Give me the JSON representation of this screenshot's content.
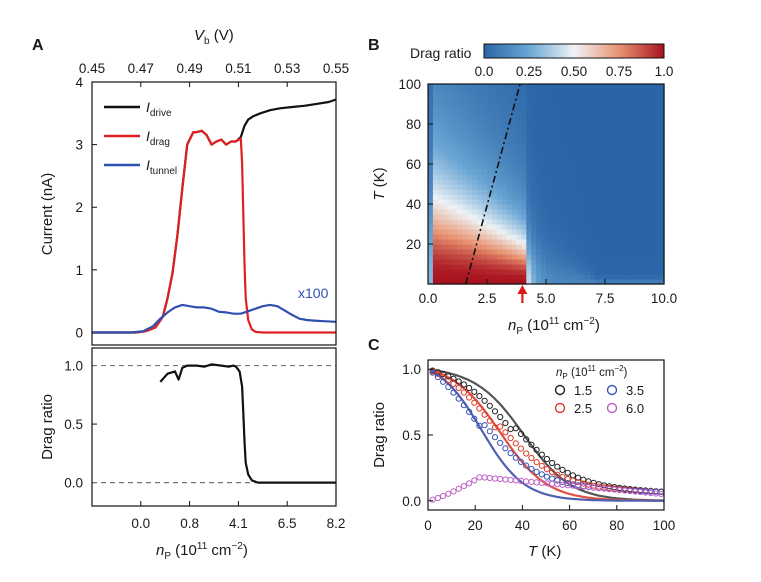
{
  "panels": {
    "a": "A",
    "b": "B",
    "c": "C"
  },
  "chart_data": [
    {
      "panel": "A",
      "type": "line",
      "top_axis": {
        "label_main": "V",
        "label_sub": "b",
        "label_unit": " (V)",
        "range": [
          0.45,
          0.55
        ],
        "ticks": [
          "0.45",
          "0.47",
          "0.49",
          "0.51",
          "0.53",
          "0.55"
        ]
      },
      "ylabel": "Current (nA)",
      "ylim": [
        -0.2,
        4.0
      ],
      "yticks": [
        "0",
        "1",
        "2",
        "3",
        "4"
      ],
      "annotation": "x100",
      "series": [
        {
          "name_main": "I",
          "name_sub": "drive",
          "color": "#111111",
          "x": [
            0.45,
            0.462,
            0.468,
            0.472,
            0.476,
            0.479,
            0.481,
            0.483,
            0.485,
            0.487,
            0.489,
            0.4915,
            0.493,
            0.495,
            0.497,
            0.499,
            0.501,
            0.503,
            0.505,
            0.507,
            0.509,
            0.511,
            0.5125,
            0.514,
            0.516,
            0.519,
            0.523,
            0.527,
            0.532,
            0.537,
            0.542,
            0.547,
            0.55
          ],
          "y": [
            0.0,
            0.0,
            0.0,
            0.02,
            0.08,
            0.25,
            0.55,
            0.95,
            1.55,
            2.3,
            3.0,
            3.2,
            3.2,
            3.22,
            3.15,
            3.0,
            3.05,
            3.08,
            3.0,
            3.05,
            3.05,
            3.12,
            3.3,
            3.4,
            3.45,
            3.5,
            3.55,
            3.58,
            3.6,
            3.62,
            3.65,
            3.68,
            3.72
          ]
        },
        {
          "name_main": "I",
          "name_sub": "drag",
          "color": "#e02020",
          "x": [
            0.45,
            0.462,
            0.468,
            0.472,
            0.476,
            0.479,
            0.481,
            0.483,
            0.485,
            0.487,
            0.489,
            0.4915,
            0.493,
            0.495,
            0.497,
            0.499,
            0.501,
            0.503,
            0.505,
            0.507,
            0.509,
            0.511,
            0.5115,
            0.512,
            0.5125,
            0.513,
            0.514,
            0.5155,
            0.517,
            0.52,
            0.525,
            0.535,
            0.55
          ],
          "y": [
            0.0,
            0.0,
            0.0,
            0.02,
            0.08,
            0.25,
            0.55,
            0.95,
            1.55,
            2.3,
            3.0,
            3.2,
            3.2,
            3.22,
            3.15,
            3.0,
            3.05,
            3.08,
            3.0,
            3.05,
            3.05,
            3.1,
            2.7,
            1.9,
            1.1,
            0.55,
            0.2,
            0.05,
            0.01,
            0.0,
            0.0,
            0.0,
            0.0
          ]
        },
        {
          "name_main": "I",
          "name_sub": "tunnel",
          "color": "#3050b0",
          "x": [
            0.45,
            0.46,
            0.466,
            0.471,
            0.475,
            0.478,
            0.481,
            0.484,
            0.487,
            0.49,
            0.493,
            0.496,
            0.499,
            0.502,
            0.505,
            0.508,
            0.511,
            0.514,
            0.517,
            0.52,
            0.523,
            0.526,
            0.529,
            0.532,
            0.535,
            0.538,
            0.541,
            0.545,
            0.55
          ],
          "y": [
            0.0,
            0.0,
            0.0,
            0.02,
            0.1,
            0.22,
            0.32,
            0.4,
            0.44,
            0.42,
            0.4,
            0.4,
            0.38,
            0.33,
            0.32,
            0.3,
            0.3,
            0.34,
            0.38,
            0.42,
            0.44,
            0.42,
            0.35,
            0.28,
            0.22,
            0.2,
            0.19,
            0.18,
            0.17
          ]
        }
      ]
    },
    {
      "panel": "A-lower",
      "type": "line",
      "xlabel_main": "n",
      "xlabel_sub": "P",
      "xlabel_unit": " (10",
      "xlabel_exp": "11",
      "xlabel_tail": " cm",
      "xlabel_exp2": "−2",
      "xlabel_close": ")",
      "xticks": [
        "0.0",
        "0.8",
        "4.1",
        "6.5",
        "8.2"
      ],
      "ylabel": "Drag ratio",
      "ylim": [
        -0.2,
        1.15
      ],
      "yticks": [
        "0.0",
        "0.5",
        "1.0"
      ],
      "reference_lines": [
        0.0,
        1.0
      ],
      "series": [
        {
          "color": "#111111",
          "x": [
            0.478,
            0.481,
            0.484,
            0.4855,
            0.487,
            0.489,
            0.491,
            0.493,
            0.496,
            0.499,
            0.503,
            0.506,
            0.508,
            0.509,
            0.5105,
            0.5115,
            0.512,
            0.5125,
            0.513,
            0.514,
            0.5155,
            0.518,
            0.525,
            0.535,
            0.55
          ],
          "y": [
            0.86,
            0.93,
            0.95,
            0.88,
            0.98,
            1.0,
            1.0,
            1.0,
            0.99,
            1.01,
            1.0,
            0.99,
            1.0,
            0.99,
            0.95,
            0.82,
            0.6,
            0.35,
            0.17,
            0.07,
            0.02,
            0.0,
            0.0,
            0.0,
            0.0
          ]
        }
      ]
    },
    {
      "panel": "B",
      "type": "heatmap",
      "colorbar_label": "Drag ratio",
      "colorbar_ticks": [
        "0.0",
        "0.25",
        "0.50",
        "0.75",
        "1.0"
      ],
      "xlabel_main": "n",
      "xlabel_sub": "P",
      "xlabel_unit": " (10",
      "xlabel_exp": "11",
      "xlabel_tail": " cm",
      "xlabel_exp2": "−2",
      "xlabel_close": ")",
      "xlim": [
        0.0,
        10.0
      ],
      "xticks": [
        "0.0",
        "2.5",
        "5.0",
        "7.5",
        "10.0"
      ],
      "ylabel": "T (K)",
      "ylim": [
        0,
        100
      ],
      "yticks": [
        "20",
        "40",
        "60",
        "80",
        "100"
      ],
      "dashdot_line": {
        "from": [
          1.6,
          0
        ],
        "to": [
          3.9,
          100
        ]
      },
      "arrow_x": 4.0,
      "colormap": [
        "#2b65a8",
        "#6aa6d4",
        "#eef3f6",
        "#e89472",
        "#a8121f"
      ]
    },
    {
      "panel": "C",
      "type": "scatter",
      "xlabel": "T (K)",
      "xlim": [
        0,
        100
      ],
      "xticks": [
        "0",
        "20",
        "40",
        "60",
        "80",
        "100"
      ],
      "ylabel": "Drag ratio",
      "ylim": [
        -0.07,
        1.07
      ],
      "yticks": [
        "0.0",
        "0.5",
        "1.0"
      ],
      "legend_title_main": "n",
      "legend_title_sub": "P",
      "legend_title_unit": " (10",
      "legend_title_exp": "11",
      "legend_title_tail": " cm",
      "legend_title_exp2": "−2",
      "legend_title_close": ")",
      "series": [
        {
          "name": "1.5",
          "color": "#222222",
          "fit_color": "#555555",
          "T1": 37,
          "w": 12,
          "fit_T1": 41,
          "fit_w": 10
        },
        {
          "name": "2.5",
          "color": "#e03a2a",
          "fit_color": "#e05040",
          "T1": 30,
          "w": 12,
          "fit_T1": 31,
          "fit_w": 10
        },
        {
          "name": "3.5",
          "color": "#3a56b8",
          "fit_color": "#5060b0",
          "T1": 22,
          "w": 12,
          "fit_T1": 23,
          "fit_w": 9
        },
        {
          "name": "6.0",
          "color": "#c060c8",
          "peak_T": 22,
          "peak_val": 0.18,
          "end_val": 0.05
        }
      ]
    }
  ]
}
